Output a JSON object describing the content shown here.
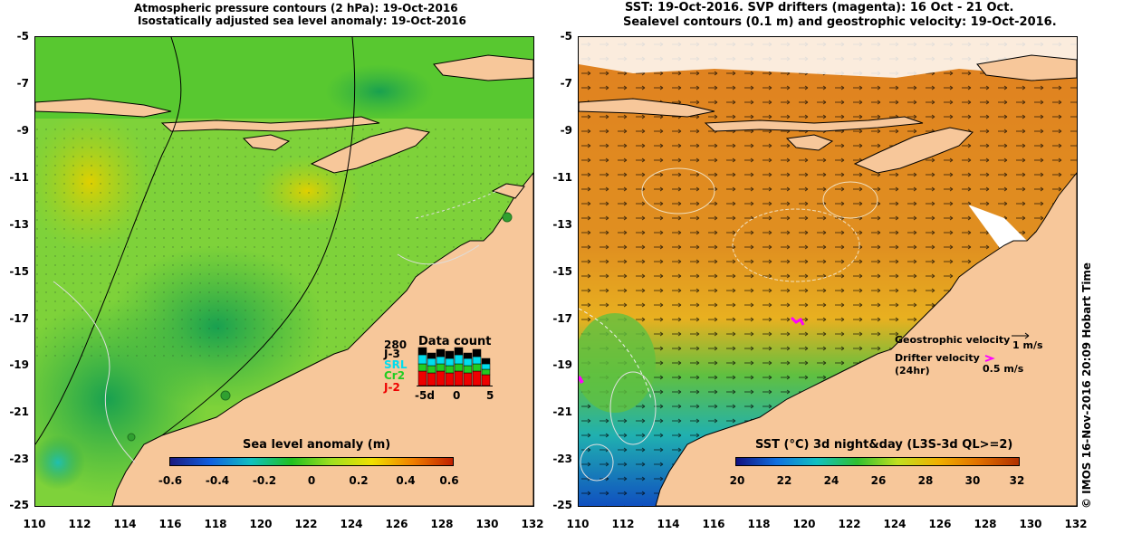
{
  "left": {
    "title1": "Atmospheric pressure contours (2 hPa): 19-Oct-2016",
    "title2": "Isostatically adjusted sea level anomaly: 19-Oct-2016",
    "colorbar_title": "Sea level anomaly (m)",
    "colorbar_ticks": [
      "-0.6",
      "-0.4",
      "-0.2",
      "0",
      "0.2",
      "0.4",
      "0.6"
    ],
    "data_count": {
      "title": "Data count",
      "max_label": "280",
      "series": [
        {
          "name": "J-3",
          "color": "#000000"
        },
        {
          "name": "SRL",
          "color": "#00ddee"
        },
        {
          "name": "Cr2",
          "color": "#22cc22"
        },
        {
          "name": "J-2",
          "color": "#ee0000"
        }
      ],
      "axis_ticks": [
        "-5d",
        "0",
        "5"
      ]
    }
  },
  "right": {
    "title1": "SST: 19-Oct-2016. SVP drifters (magenta): 16 Oct - 21 Oct.",
    "title2": "Sealevel contours (0.1 m) and geostrophic velocity: 19-Oct-2016.",
    "colorbar_title": "SST (°C) 3d night&day (L3S-3d QL>=2)",
    "colorbar_ticks": [
      "20",
      "22",
      "24",
      "26",
      "28",
      "30",
      "32"
    ],
    "legend": {
      "geo_label": "Geostrophic velocity",
      "geo_value": "1 m/s",
      "drifter_label": "Drifter velocity",
      "drifter_sub": "(24hr)",
      "drifter_value": "0.5 m/s"
    }
  },
  "lat_ticks": [
    "-5",
    "-7",
    "-9",
    "-11",
    "-13",
    "-15",
    "-17",
    "-19",
    "-21",
    "-23",
    "-25"
  ],
  "lon_ticks": [
    "110",
    "112",
    "114",
    "116",
    "118",
    "120",
    "122",
    "124",
    "126",
    "128",
    "130",
    "132"
  ],
  "credit": "© IMOS 16-Nov-2016 20:09 Hobart Time",
  "colors": {
    "land": "#f7c79a",
    "sla_gradient": [
      "#1a1a80",
      "#1060e0",
      "#10c0c0",
      "#20c020",
      "#a0e020",
      "#f0e000",
      "#f08000",
      "#c02000"
    ],
    "sst_gradient": [
      "#101080",
      "#1070e0",
      "#10c0c0",
      "#30c030",
      "#c0e020",
      "#f0b000",
      "#e07000",
      "#b03000"
    ]
  }
}
